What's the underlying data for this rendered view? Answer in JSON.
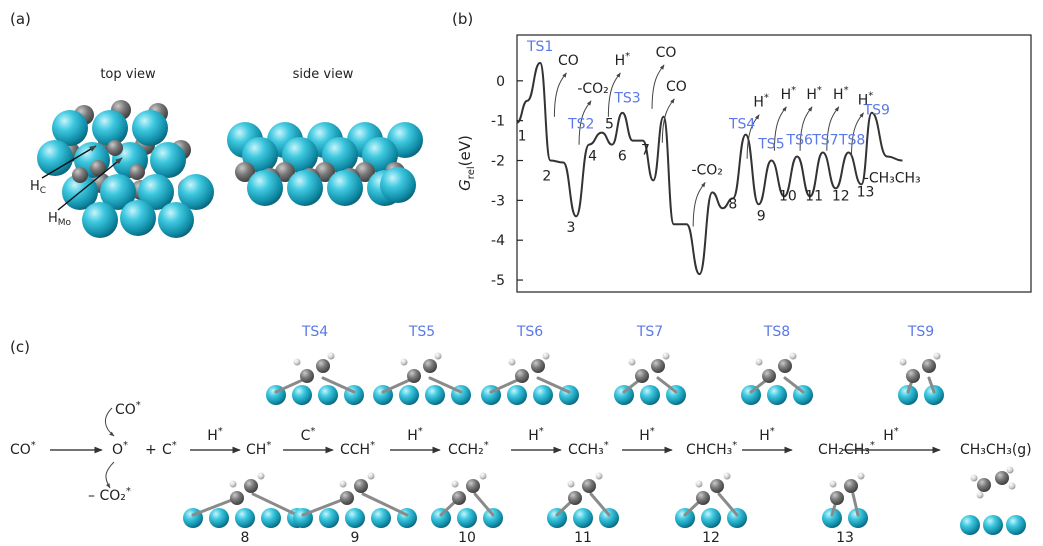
{
  "panels": {
    "a": "(a)",
    "b": "(b)",
    "c": "(c)"
  },
  "panel_a": {
    "top_view": "top view",
    "side_view": "side view",
    "h_c": {
      "main": "H",
      "sub": "C"
    },
    "h_mo": {
      "main": "H",
      "sub": "Mo"
    }
  },
  "colors": {
    "mo": "#1fb3cc",
    "carbon": "#6d6d6d",
    "hydrogen": "#d5d5d5",
    "ts_label": "#5a78e8",
    "line": "#333333"
  },
  "chart_data": {
    "type": "line",
    "ylabel": "G_rel (eV)",
    "ylabel_parts": {
      "main": "G",
      "sub": "rel",
      "unit": "(eV)"
    },
    "ylim": [
      -5.3,
      1.15
    ],
    "yticks": [
      0,
      -1,
      -2,
      -3,
      -4,
      -5
    ],
    "ytick_labels": [
      "0",
      "-1",
      "-2",
      "-3",
      "-4",
      "-5"
    ],
    "grid": false,
    "profile": [
      [
        0,
        -1.05
      ],
      [
        0.02,
        -0.5
      ],
      [
        0.045,
        0.45
      ],
      [
        0.065,
        -2.0
      ],
      [
        0.09,
        -2.05
      ],
      [
        0.115,
        -3.4
      ],
      [
        0.14,
        -1.6
      ],
      [
        0.165,
        -1.3
      ],
      [
        0.185,
        -1.6
      ],
      [
        0.205,
        -0.8
      ],
      [
        0.225,
        -1.5
      ],
      [
        0.245,
        -1.5
      ],
      [
        0.265,
        -2.5
      ],
      [
        0.285,
        -0.9
      ],
      [
        0.305,
        -3.6
      ],
      [
        0.33,
        -3.6
      ],
      [
        0.355,
        -4.85
      ],
      [
        0.38,
        -2.8
      ],
      [
        0.4,
        -3.2
      ],
      [
        0.42,
        -2.95
      ],
      [
        0.445,
        -1.35
      ],
      [
        0.47,
        -3.1
      ],
      [
        0.495,
        -2.0
      ],
      [
        0.52,
        -2.9
      ],
      [
        0.545,
        -1.9
      ],
      [
        0.57,
        -2.9
      ],
      [
        0.595,
        -1.8
      ],
      [
        0.62,
        -2.7
      ],
      [
        0.645,
        -1.8
      ],
      [
        0.67,
        -2.6
      ],
      [
        0.69,
        -0.8
      ],
      [
        0.72,
        -1.9
      ],
      [
        0.75,
        -2.0
      ]
    ],
    "ts_labels": [
      {
        "text": "TS1",
        "x": 0.045,
        "y": 0.75
      },
      {
        "text": "TS2",
        "x": 0.125,
        "y": -1.2
      },
      {
        "text": "TS3",
        "x": 0.215,
        "y": -0.55
      },
      {
        "text": "TS4",
        "x": 0.438,
        "y": -1.2
      },
      {
        "text": "TS5",
        "x": 0.495,
        "y": -1.7
      },
      {
        "text": "TS6",
        "x": 0.55,
        "y": -1.6
      },
      {
        "text": "TS7",
        "x": 0.6,
        "y": -1.6
      },
      {
        "text": "TS8",
        "x": 0.652,
        "y": -1.6
      },
      {
        "text": "TS9",
        "x": 0.7,
        "y": -0.85
      }
    ],
    "state_labels": [
      {
        "text": "1",
        "x": 0.01,
        "y": -1.5
      },
      {
        "text": "2",
        "x": 0.058,
        "y": -2.5
      },
      {
        "text": "3",
        "x": 0.105,
        "y": -3.8
      },
      {
        "text": "4",
        "x": 0.147,
        "y": -2.0
      },
      {
        "text": "5",
        "x": 0.18,
        "y": -1.2
      },
      {
        "text": "6",
        "x": 0.205,
        "y": -2.0
      },
      {
        "text": "7",
        "x": 0.25,
        "y": -1.85
      },
      {
        "text": "8",
        "x": 0.42,
        "y": -3.2
      },
      {
        "text": "9",
        "x": 0.475,
        "y": -3.5
      },
      {
        "text": "10",
        "x": 0.527,
        "y": -3.0
      },
      {
        "text": "11",
        "x": 0.578,
        "y": -3.0
      },
      {
        "text": "12",
        "x": 0.63,
        "y": -3.0
      },
      {
        "text": "13",
        "x": 0.678,
        "y": -2.9
      }
    ],
    "annotations": [
      {
        "text": "CO",
        "x": 0.1,
        "y": 0.4
      },
      {
        "text": "-CO₂",
        "x": 0.148,
        "y": -0.3
      },
      {
        "text": "H*",
        "x": 0.205,
        "y": 0.4
      },
      {
        "text": "CO",
        "x": 0.29,
        "y": 0.6
      },
      {
        "text": "CO",
        "x": 0.31,
        "y": -0.25
      },
      {
        "text": "-CO₂",
        "x": 0.37,
        "y": -2.35
      },
      {
        "text": "H*",
        "x": 0.475,
        "y": -0.65
      },
      {
        "text": "H*",
        "x": 0.528,
        "y": -0.45
      },
      {
        "text": "H*",
        "x": 0.578,
        "y": -0.45
      },
      {
        "text": "H*",
        "x": 0.63,
        "y": -0.45
      },
      {
        "text": "H*",
        "x": 0.678,
        "y": -0.6
      },
      {
        "text": "-CH₃CH₃",
        "x": 0.73,
        "y": -2.55
      }
    ]
  },
  "panel_c": {
    "ts_labels": [
      "TS4",
      "TS5",
      "TS6",
      "TS7",
      "TS8",
      "TS9"
    ],
    "state_numbers": [
      "8",
      "9",
      "10",
      "11",
      "12",
      "13"
    ],
    "co_start": "CO*",
    "co_adsorb": "CO*",
    "o_star": "O*",
    "plus": "+",
    "c_star": "C*",
    "co2_out": "– CO₂*",
    "species": [
      "CH*",
      "CCH*",
      "CCH₂*",
      "CCH₃*",
      "CHCH₃*",
      "CH₂CH₃*",
      "CH₃CH₃(g)"
    ],
    "arrow_labels": [
      "H*",
      "C*",
      "H*",
      "H*",
      "H*",
      "H*",
      "H*"
    ]
  }
}
